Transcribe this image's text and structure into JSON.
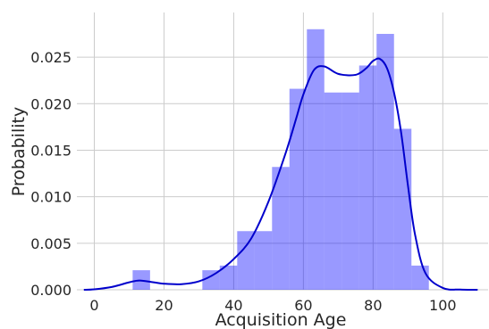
{
  "chart_data": {
    "type": "histogram",
    "xlabel": "Acquisition Age",
    "ylabel": "Probability",
    "xlim": [
      -5,
      113
    ],
    "ylim": [
      0,
      0.0298
    ],
    "x_ticks": [
      0,
      20,
      40,
      60,
      80,
      100
    ],
    "x_tick_labels": [
      "0",
      "20",
      "40",
      "60",
      "80",
      "100"
    ],
    "y_ticks": [
      0.0,
      0.005,
      0.01,
      0.015,
      0.02,
      0.025
    ],
    "y_tick_labels": [
      "0.000",
      "0.005",
      "0.010",
      "0.015",
      "0.020",
      "0.025"
    ],
    "grid": true,
    "histogram": {
      "color": "#0000ff",
      "bins": [
        {
          "x0": 11,
          "x1": 16,
          "value": 0.0021
        },
        {
          "x0": 16,
          "x1": 21,
          "value": 0.0
        },
        {
          "x0": 21,
          "x1": 26,
          "value": 0.0
        },
        {
          "x0": 26,
          "x1": 31,
          "value": 0.0
        },
        {
          "x0": 31,
          "x1": 36,
          "value": 0.0021
        },
        {
          "x0": 36,
          "x1": 41,
          "value": 0.0026
        },
        {
          "x0": 41,
          "x1": 46,
          "value": 0.0063
        },
        {
          "x0": 46,
          "x1": 51,
          "value": 0.0063
        },
        {
          "x0": 51,
          "x1": 56,
          "value": 0.0132
        },
        {
          "x0": 56,
          "x1": 61,
          "value": 0.0216
        },
        {
          "x0": 61,
          "x1": 66,
          "value": 0.028
        },
        {
          "x0": 66,
          "x1": 71,
          "value": 0.0212
        },
        {
          "x0": 71,
          "x1": 76,
          "value": 0.0212
        },
        {
          "x0": 76,
          "x1": 81,
          "value": 0.0241
        },
        {
          "x0": 81,
          "x1": 86,
          "value": 0.0275
        },
        {
          "x0": 86,
          "x1": 91,
          "value": 0.0173
        },
        {
          "x0": 91,
          "x1": 96,
          "value": 0.0026
        }
      ]
    },
    "kde": {
      "color": "#0000cc",
      "x": [
        -3,
        0,
        5,
        10,
        13,
        17,
        20,
        25,
        30,
        35,
        40,
        45,
        50,
        55,
        58,
        60,
        63,
        66,
        70,
        75,
        78,
        80,
        82,
        84,
        86,
        88,
        90,
        92,
        95,
        100,
        105,
        110
      ],
      "y": [
        0.0,
        5e-05,
        0.0003,
        0.0008,
        0.001,
        0.0008,
        0.00065,
        0.0006,
        0.0009,
        0.0018,
        0.0033,
        0.0055,
        0.0095,
        0.0148,
        0.0185,
        0.021,
        0.0236,
        0.024,
        0.0232,
        0.0231,
        0.0238,
        0.0246,
        0.0248,
        0.0238,
        0.0212,
        0.017,
        0.0112,
        0.006,
        0.0018,
        0.0002,
        2e-05,
        0.0
      ]
    }
  }
}
